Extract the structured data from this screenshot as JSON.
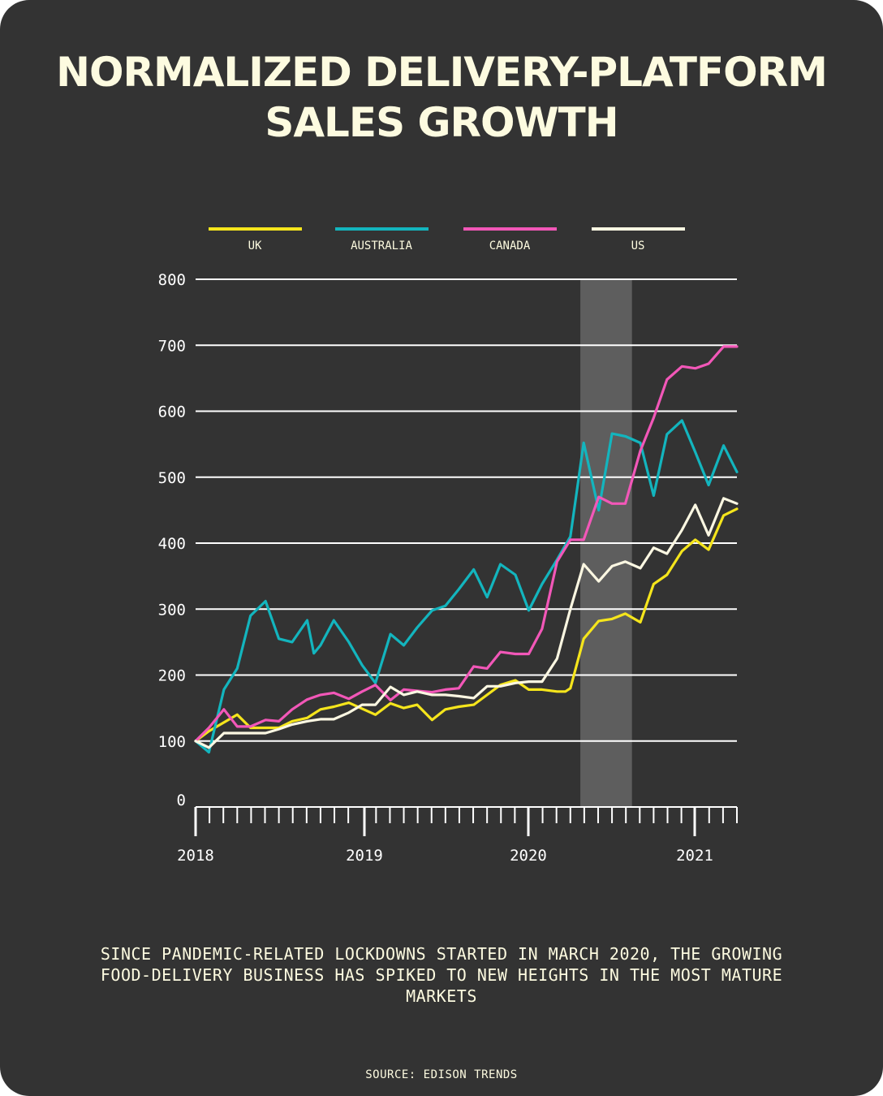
{
  "title_lines": [
    "NORMALIZED DELIVERY-PLATFORM",
    "SALES GROWTH"
  ],
  "caption": "SINCE PANDEMIC-RELATED LOCKDOWNS STARTED IN MARCH 2020, THE GROWING FOOD-DELIVERY BUSINESS HAS SPIKED TO NEW HEIGHTS IN THE MOST MATURE MARKETS",
  "source": "SOURCE: EDISON TRENDS",
  "colors": {
    "background": "#333333",
    "text": "#fdfbe0",
    "grid": "#ffffff",
    "highlight": "#5e5e5e"
  },
  "chart_data": {
    "type": "line",
    "title": "NORMALIZED DELIVERY-PLATFORM SALES GROWTH",
    "x_unit": "years (decimal)",
    "xlim": [
      2018.0,
      2021.25
    ],
    "ylim": [
      0,
      800
    ],
    "yticks": [
      0,
      100,
      200,
      300,
      400,
      500,
      600,
      700,
      800
    ],
    "ytick_labels": [
      "0",
      "100",
      "200",
      "300",
      "400",
      "500",
      "600",
      "700",
      "800"
    ],
    "xticks": [
      2018,
      2019,
      2020,
      2021
    ],
    "xtick_labels": [
      "2018",
      "2019",
      "2020",
      "2021"
    ],
    "minor_ticks_per_year": 12,
    "highlight_span": [
      2020.31,
      2020.62
    ],
    "legend_position": "top",
    "series": [
      {
        "name": "UK",
        "color": "#f5e51c",
        "x": [
          2018.0,
          2018.08,
          2018.25,
          2018.33,
          2018.5,
          2018.58,
          2018.67,
          2018.75,
          2018.83,
          2018.92,
          2019.08,
          2019.17,
          2019.25,
          2019.33,
          2019.42,
          2019.5,
          2019.58,
          2019.67,
          2019.75,
          2019.83,
          2019.92,
          2020.0,
          2020.08,
          2020.17,
          2020.22,
          2020.25,
          2020.33,
          2020.42,
          2020.5,
          2020.58,
          2020.67,
          2020.75,
          2020.83,
          2020.92,
          2021.0,
          2021.08,
          2021.17,
          2021.25
        ],
        "y": [
          100,
          115,
          140,
          120,
          120,
          130,
          135,
          148,
          152,
          158,
          140,
          157,
          150,
          155,
          132,
          148,
          152,
          155,
          170,
          185,
          192,
          178,
          178,
          175,
          175,
          180,
          255,
          282,
          285,
          293,
          280,
          338,
          352,
          388,
          405,
          390,
          442,
          452
        ]
      },
      {
        "name": "AUSTRALIA",
        "color": "#13b5be",
        "x": [
          2018.0,
          2018.08,
          2018.17,
          2018.25,
          2018.33,
          2018.42,
          2018.5,
          2018.58,
          2018.67,
          2018.71,
          2018.75,
          2018.83,
          2018.92,
          2019.0,
          2019.08,
          2019.17,
          2019.25,
          2019.33,
          2019.42,
          2019.5,
          2019.58,
          2019.67,
          2019.75,
          2019.83,
          2019.92,
          2020.0,
          2020.08,
          2020.17,
          2020.25,
          2020.33,
          2020.42,
          2020.5,
          2020.58,
          2020.67,
          2020.75,
          2020.83,
          2020.92,
          2021.0,
          2021.08,
          2021.17,
          2021.25
        ],
        "y": [
          100,
          83,
          178,
          210,
          290,
          312,
          255,
          250,
          283,
          233,
          245,
          283,
          250,
          215,
          188,
          262,
          245,
          272,
          298,
          305,
          330,
          360,
          318,
          368,
          352,
          298,
          338,
          375,
          410,
          552,
          450,
          566,
          562,
          552,
          472,
          565,
          586,
          538,
          488,
          548,
          508
        ]
      },
      {
        "name": "CANADA",
        "color": "#f257b8",
        "x": [
          2018.0,
          2018.08,
          2018.17,
          2018.25,
          2018.33,
          2018.42,
          2018.5,
          2018.58,
          2018.67,
          2018.75,
          2018.83,
          2018.92,
          2019.0,
          2019.08,
          2019.17,
          2019.25,
          2019.33,
          2019.42,
          2019.5,
          2019.58,
          2019.67,
          2019.75,
          2019.83,
          2019.92,
          2020.0,
          2020.08,
          2020.17,
          2020.25,
          2020.33,
          2020.42,
          2020.5,
          2020.58,
          2020.67,
          2020.75,
          2020.83,
          2020.92,
          2021.0,
          2021.08,
          2021.17,
          2021.25
        ],
        "y": [
          100,
          120,
          148,
          122,
          122,
          132,
          130,
          148,
          163,
          170,
          173,
          164,
          175,
          185,
          162,
          178,
          176,
          174,
          178,
          180,
          213,
          210,
          235,
          232,
          232,
          270,
          372,
          405,
          405,
          470,
          460,
          460,
          540,
          590,
          648,
          668,
          665,
          672,
          698,
          698
        ]
      },
      {
        "name": "US",
        "color": "#fbf7e2",
        "x": [
          2018.0,
          2018.08,
          2018.17,
          2018.25,
          2018.33,
          2018.42,
          2018.5,
          2018.58,
          2018.67,
          2018.75,
          2018.83,
          2018.92,
          2019.0,
          2019.08,
          2019.17,
          2019.25,
          2019.33,
          2019.42,
          2019.5,
          2019.58,
          2019.67,
          2019.75,
          2019.83,
          2019.92,
          2020.0,
          2020.08,
          2020.17,
          2020.25,
          2020.33,
          2020.42,
          2020.5,
          2020.58,
          2020.67,
          2020.75,
          2020.83,
          2020.92,
          2021.0,
          2021.08,
          2021.17,
          2021.25
        ],
        "y": [
          100,
          90,
          112,
          112,
          112,
          112,
          118,
          125,
          130,
          133,
          133,
          143,
          155,
          155,
          182,
          170,
          175,
          170,
          170,
          168,
          165,
          183,
          183,
          188,
          190,
          190,
          225,
          300,
          368,
          342,
          365,
          372,
          362,
          393,
          384,
          420,
          458,
          412,
          468,
          460
        ]
      }
    ]
  }
}
